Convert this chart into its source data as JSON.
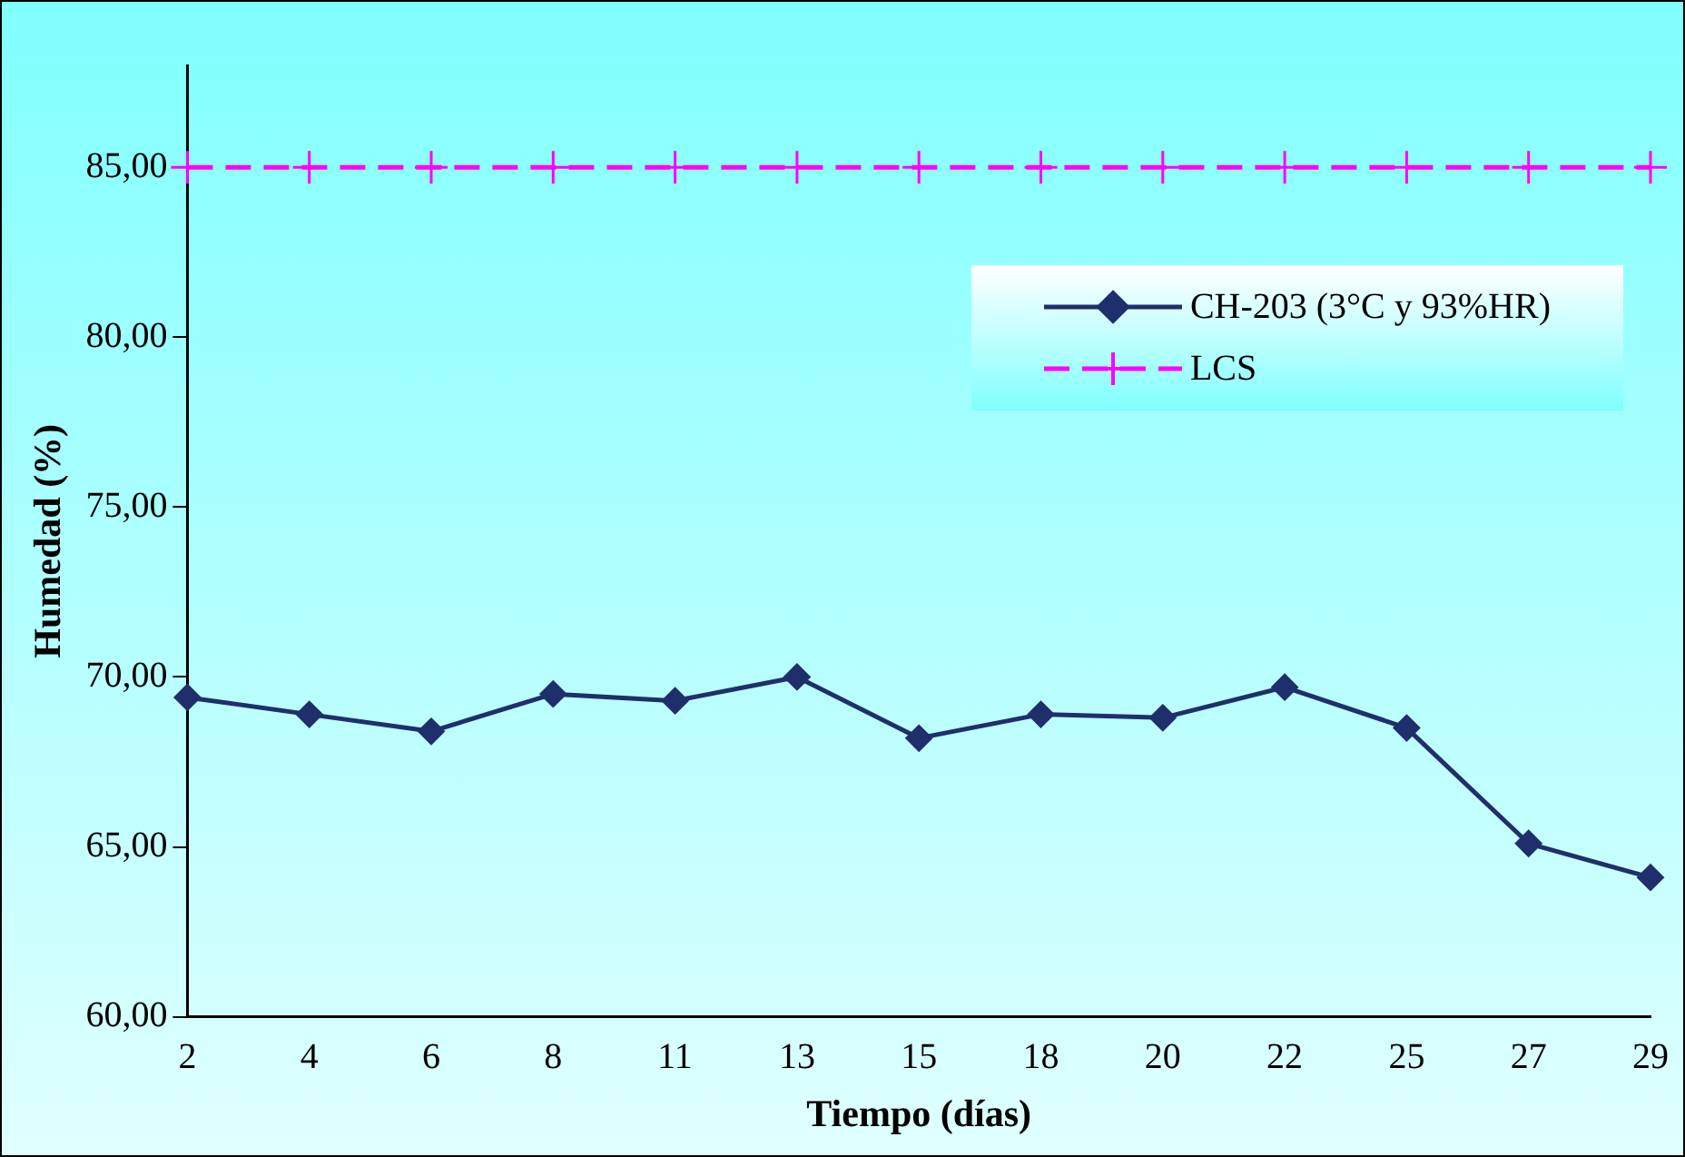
{
  "chart_data": {
    "type": "line",
    "xlabel": "Tiempo (días)",
    "ylabel": "Humedad (%)",
    "categories": [
      "2",
      "4",
      "6",
      "8",
      "11",
      "13",
      "15",
      "18",
      "20",
      "22",
      "25",
      "27",
      "29"
    ],
    "series": [
      {
        "name": "CH-203 (3°C y 93%HR)",
        "color": "#1f2f6b",
        "marker": "diamond",
        "line_style": "solid",
        "values": [
          69.4,
          68.9,
          68.4,
          69.5,
          69.3,
          70.0,
          68.2,
          68.9,
          68.8,
          69.7,
          68.5,
          65.1,
          64.1
        ]
      },
      {
        "name": "LCS",
        "color": "#ff00ff",
        "marker": "cross",
        "line_style": "dashed",
        "values": [
          85,
          85,
          85,
          85,
          85,
          85,
          85,
          85,
          85,
          85,
          85,
          85,
          85
        ]
      }
    ],
    "ylim": [
      60,
      88
    ],
    "yticks": [
      {
        "value": 60,
        "label": "60,00"
      },
      {
        "value": 65,
        "label": "65,00"
      },
      {
        "value": 70,
        "label": "70,00"
      },
      {
        "value": 75,
        "label": "75,00"
      },
      {
        "value": 80,
        "label": "80,00"
      },
      {
        "value": 85,
        "label": "85,00"
      }
    ],
    "grid": false,
    "legend": "top right"
  }
}
